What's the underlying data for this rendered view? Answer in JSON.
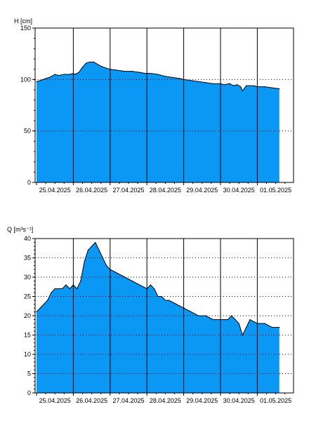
{
  "colors": {
    "fill": "#0b98f5",
    "line": "#000000",
    "grid": "#000000",
    "frame": "#000000",
    "background": "#ffffff"
  },
  "chart_data": [
    {
      "type": "area",
      "title": "",
      "ylabel": "H [cm]",
      "xlabel": "",
      "ylim": [
        0,
        150
      ],
      "yticks": [
        0,
        50,
        100,
        150
      ],
      "x_tick_labels": [
        "25.04.2025",
        "26.04.2025",
        "27.04.2025",
        "28.04.2025",
        "29.04.2025",
        "30.04.2025",
        "01.05.2025"
      ],
      "x_range_days": [
        0,
        7.0
      ],
      "grid": {
        "vertical_days": true,
        "horizontal_dotted": [
          50,
          100
        ],
        "minor_y_ticks": 10
      },
      "series": [
        {
          "x_days": [
            0.0,
            0.1,
            0.25,
            0.35,
            0.45,
            0.5,
            0.6,
            0.75,
            0.9,
            1.0,
            1.05,
            1.15,
            1.25,
            1.35,
            1.45,
            1.55,
            1.65,
            1.75,
            1.9,
            2.0,
            2.2,
            2.4,
            2.6,
            2.8,
            2.95,
            3.1,
            3.3,
            3.5,
            3.7,
            3.9,
            4.0,
            4.2,
            4.4,
            4.6,
            4.8,
            5.0,
            5.1,
            5.25,
            5.35,
            5.45,
            5.55,
            5.6,
            5.7,
            5.9,
            6.0,
            6.2,
            6.4,
            6.6
          ],
          "values": [
            98,
            99,
            101,
            102,
            104,
            105,
            104,
            105,
            105,
            106,
            105,
            107,
            112,
            116,
            117,
            117,
            115,
            113,
            111,
            110,
            109,
            108,
            108,
            107,
            106,
            106,
            105,
            103,
            102,
            101,
            100,
            99,
            98,
            97,
            96,
            96,
            95,
            96,
            94,
            95,
            93,
            89,
            94,
            94,
            93,
            93,
            92,
            91
          ]
        }
      ]
    },
    {
      "type": "area",
      "title": "",
      "ylabel": "Q [m³s⁻¹]",
      "xlabel": "",
      "ylim": [
        0,
        40
      ],
      "yticks": [
        0,
        5,
        10,
        15,
        20,
        25,
        30,
        35,
        40
      ],
      "x_tick_labels": [
        "25.04.2025",
        "26.04.2025",
        "27.04.2025",
        "28.04.2025",
        "29.04.2025",
        "30.04.2025",
        "01.05.2025"
      ],
      "x_range_days": [
        0,
        7.0
      ],
      "grid": {
        "vertical_days": true,
        "horizontal_dotted": [
          5,
          10,
          15,
          20,
          25,
          30,
          35
        ],
        "minor_y_ticks": 1
      },
      "series": [
        {
          "x_days": [
            0.0,
            0.1,
            0.2,
            0.3,
            0.4,
            0.5,
            0.6,
            0.7,
            0.8,
            0.9,
            1.0,
            1.1,
            1.2,
            1.3,
            1.4,
            1.5,
            1.6,
            1.7,
            1.8,
            1.9,
            2.0,
            2.2,
            2.4,
            2.6,
            2.8,
            3.0,
            3.1,
            3.2,
            3.3,
            3.4,
            3.5,
            3.6,
            3.8,
            4.0,
            4.2,
            4.4,
            4.6,
            4.8,
            5.0,
            5.2,
            5.3,
            5.4,
            5.5,
            5.6,
            5.7,
            5.8,
            6.0,
            6.2,
            6.4,
            6.6
          ],
          "values": [
            21,
            22,
            23,
            24,
            26,
            27,
            27,
            27,
            28,
            27,
            28,
            27,
            29,
            34,
            37,
            38,
            39,
            37,
            35,
            33,
            32,
            31,
            30,
            29,
            28,
            27,
            28,
            27,
            25,
            25,
            24,
            24,
            23,
            22,
            21,
            20,
            20,
            19,
            19,
            19,
            20,
            19,
            18,
            15,
            17,
            19,
            18,
            18,
            17,
            17
          ]
        }
      ]
    }
  ]
}
